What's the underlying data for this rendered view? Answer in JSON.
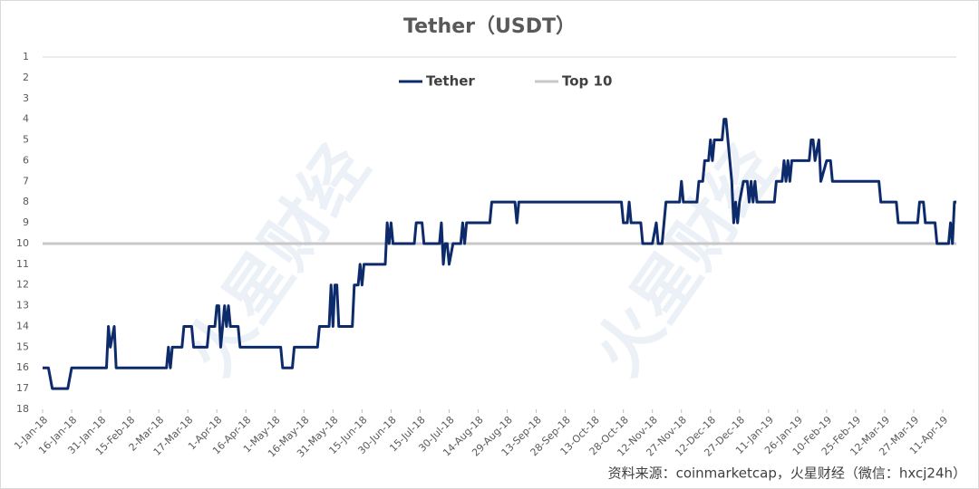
{
  "chart_data": {
    "type": "line",
    "title": "Tether（USDT）",
    "source": "资料来源：coinmarketcap，火星财经（微信：hxcj24h）",
    "watermark": "火星财经",
    "legend": "top",
    "grid": false,
    "xlim": [
      "1-Jan-18",
      "18-Apr-19"
    ],
    "xticks": [
      "1-Jan-18",
      "16-Jan-18",
      "31-Jan-18",
      "15-Feb-18",
      "2-Mar-18",
      "17-Mar-18",
      "1-Apr-18",
      "16-Apr-18",
      "1-May-18",
      "16-May-18",
      "31-May-18",
      "15-Jun-18",
      "30-Jun-18",
      "15-Jul-18",
      "30-Jul-18",
      "14-Aug-18",
      "29-Aug-18",
      "13-Sep-18",
      "28-Sep-18",
      "13-Oct-18",
      "28-Oct-18",
      "12-Nov-18",
      "27-Nov-18",
      "12-Dec-18",
      "27-Dec-18",
      "11-Jan-19",
      "26-Jan-19",
      "10-Feb-19",
      "25-Feb-19",
      "12-Mar-19",
      "27-Mar-19",
      "11-Apr-19"
    ],
    "ylim": [
      18,
      1
    ],
    "yticks": [
      1,
      2,
      3,
      4,
      5,
      6,
      7,
      8,
      9,
      10,
      11,
      12,
      13,
      14,
      15,
      16,
      17,
      18
    ],
    "series": [
      {
        "name": "Tether",
        "color": "#0d2a6b",
        "x": [
          "1-Jan-18",
          "4-Jan-18",
          "6-Jan-18",
          "14-Jan-18",
          "16-Jan-18",
          "3-Feb-18",
          "4-Feb-18",
          "5-Feb-18",
          "7-Feb-18",
          "8-Feb-18",
          "6-Mar-18",
          "7-Mar-18",
          "8-Mar-18",
          "9-Mar-18",
          "14-Mar-18",
          "15-Mar-18",
          "19-Mar-18",
          "20-Mar-18",
          "27-Mar-18",
          "28-Mar-18",
          "31-Mar-18",
          "1-Apr-18",
          "2-Apr-18",
          "3-Apr-18",
          "5-Apr-18",
          "6-Apr-18",
          "7-Apr-18",
          "8-Apr-18",
          "12-Apr-18",
          "13-Apr-18",
          "4-May-18",
          "5-May-18",
          "10-May-18",
          "11-May-18",
          "23-May-18",
          "24-May-18",
          "29-May-18",
          "30-May-18",
          "31-May-18",
          "1-Jun-18",
          "2-Jun-18",
          "3-Jun-18",
          "10-Jun-18",
          "11-Jun-18",
          "13-Jun-18",
          "14-Jun-18",
          "15-Jun-18",
          "16-Jun-18",
          "27-Jun-18",
          "28-Jun-18",
          "29-Jun-18",
          "30-Jun-18",
          "1-Jul-18",
          "12-Jul-18",
          "13-Jul-18",
          "16-Jul-18",
          "17-Jul-18",
          "25-Jul-18",
          "26-Jul-18",
          "27-Jul-18",
          "28-Jul-18",
          "29-Jul-18",
          "30-Jul-18",
          "1-Aug-18",
          "5-Aug-18",
          "6-Aug-18",
          "7-Aug-18",
          "8-Aug-18",
          "20-Aug-18",
          "21-Aug-18",
          "2-Sep-18",
          "3-Sep-18",
          "4-Sep-18",
          "27-Oct-18",
          "28-Oct-18",
          "30-Oct-18",
          "31-Oct-18",
          "1-Nov-18",
          "6-Nov-18",
          "7-Nov-18",
          "12-Nov-18",
          "14-Nov-18",
          "15-Nov-18",
          "17-Nov-18",
          "18-Nov-18",
          "19-Nov-18",
          "26-Nov-18",
          "27-Nov-18",
          "28-Nov-18",
          "5-Dec-18",
          "6-Dec-18",
          "8-Dec-18",
          "9-Dec-18",
          "11-Dec-18",
          "12-Dec-18",
          "13-Dec-18",
          "14-Dec-18",
          "18-Dec-18",
          "19-Dec-18",
          "20-Dec-18",
          "22-Dec-18",
          "23-Dec-18",
          "24-Dec-18",
          "25-Dec-18",
          "26-Dec-18",
          "27-Dec-18",
          "29-Dec-18",
          "31-Dec-18",
          "1-Jan-19",
          "2-Jan-19",
          "3-Jan-19",
          "4-Jan-19",
          "5-Jan-19",
          "14-Jan-19",
          "15-Jan-19",
          "18-Jan-19",
          "19-Jan-19",
          "20-Jan-19",
          "21-Jan-19",
          "22-Jan-19",
          "23-Jan-19",
          "1-Feb-19",
          "2-Feb-19",
          "3-Feb-19",
          "4-Feb-19",
          "6-Feb-19",
          "7-Feb-19",
          "10-Feb-19",
          "12-Feb-19",
          "13-Feb-19",
          "9-Mar-19",
          "10-Mar-19",
          "18-Mar-19",
          "19-Mar-19",
          "29-Mar-19",
          "30-Mar-19",
          "1-Apr-19",
          "2-Apr-19",
          "7-Apr-19",
          "8-Apr-19",
          "14-Apr-19",
          "15-Apr-19",
          "16-Apr-19",
          "17-Apr-19",
          "18-Apr-19"
        ],
        "values": [
          16,
          16,
          17,
          17,
          16,
          16,
          14,
          15,
          14,
          16,
          16,
          15,
          16,
          15,
          15,
          14,
          14,
          15,
          15,
          14,
          14,
          13,
          13,
          15,
          13,
          14,
          13,
          14,
          14,
          15,
          15,
          16,
          16,
          15,
          15,
          14,
          14,
          12,
          14,
          12,
          12,
          14,
          14,
          12,
          12,
          11,
          12,
          11,
          11,
          9,
          10,
          9,
          10,
          10,
          9,
          9,
          10,
          10,
          9,
          11,
          10,
          10,
          11,
          10,
          10,
          9,
          10,
          9,
          9,
          8,
          8,
          9,
          8,
          8,
          9,
          9,
          8,
          9,
          9,
          10,
          10,
          9,
          10,
          10,
          9,
          8,
          8,
          7,
          8,
          8,
          7,
          7,
          6,
          6,
          5,
          6,
          5,
          5,
          4,
          4,
          6,
          7,
          9,
          8,
          9,
          8,
          7,
          7,
          8,
          7,
          8,
          7,
          8,
          8,
          7,
          7,
          6,
          7,
          6,
          7,
          6,
          6,
          5,
          5,
          6,
          5,
          7,
          6,
          6,
          7,
          7,
          8,
          8,
          9,
          9,
          8,
          8,
          9,
          9,
          10,
          10,
          9,
          10,
          8,
          8
        ]
      },
      {
        "name": "Top 10",
        "color": "#c8c8c8",
        "x": [
          "1-Jan-18",
          "18-Apr-19"
        ],
        "values": [
          10,
          10
        ]
      }
    ]
  }
}
